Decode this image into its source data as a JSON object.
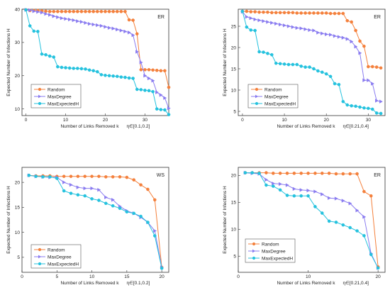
{
  "colors": {
    "random": "#F4803C",
    "maxdegree": "#8A7CF0",
    "maxexpected": "#25C2DE"
  },
  "chart_data": [
    {
      "type": "line",
      "panel_label": "ER",
      "xlabel": "Number of Links Removed k",
      "param_note": "η∈[0.1,0.2]",
      "ylabel": "Expected Number of Infections H",
      "xlim": [
        -1,
        36
      ],
      "ylim": [
        8,
        40
      ],
      "xticks": [
        0,
        10,
        20,
        30
      ],
      "yticks": [
        10,
        20,
        30,
        40
      ],
      "legend": "center-left",
      "series": [
        {
          "name": "Random",
          "color": "#F4803C",
          "marker": "circle",
          "x": [
            0,
            1,
            2,
            3,
            4,
            5,
            6,
            7,
            8,
            9,
            10,
            11,
            12,
            13,
            14,
            15,
            16,
            17,
            18,
            19,
            20,
            21,
            22,
            23,
            24,
            25,
            26,
            27,
            28,
            29,
            30,
            31,
            32,
            33,
            34,
            35,
            36
          ],
          "y": [
            39.8,
            39.6,
            39.6,
            39.6,
            39.5,
            39.4,
            39.3,
            39.3,
            39.3,
            39.3,
            39.3,
            39.3,
            39.3,
            39.3,
            39.3,
            39.3,
            39.3,
            39.3,
            39.3,
            39.3,
            39.3,
            39.3,
            39.3,
            39.3,
            39.3,
            39.3,
            36.8,
            36.7,
            32.6,
            21.8,
            21.8,
            21.8,
            21.7,
            21.6,
            21.5,
            21.5,
            16.5
          ]
        },
        {
          "name": "MaxDegree",
          "color": "#8A7CF0",
          "marker": "triangle",
          "x": [
            0,
            1,
            2,
            3,
            4,
            5,
            6,
            7,
            8,
            9,
            10,
            11,
            12,
            13,
            14,
            15,
            16,
            17,
            18,
            19,
            20,
            21,
            22,
            23,
            24,
            25,
            26,
            27,
            28,
            29,
            30,
            31,
            32,
            33,
            34,
            35,
            36
          ],
          "y": [
            39.8,
            39.7,
            39.4,
            39.2,
            39.0,
            38.6,
            38.3,
            37.9,
            37.6,
            37.3,
            37.1,
            36.9,
            36.7,
            36.4,
            36.2,
            35.9,
            35.6,
            35.4,
            35.2,
            35.0,
            34.7,
            34.4,
            34.2,
            33.9,
            33.6,
            33.3,
            33.0,
            32.2,
            27.2,
            24.0,
            20.0,
            19.2,
            18.5,
            15.0,
            14.2,
            13.3,
            10.2
          ]
        },
        {
          "name": "MaxExpectedH",
          "color": "#25C2DE",
          "marker": "circle",
          "x": [
            0,
            1,
            2,
            3,
            4,
            5,
            6,
            7,
            8,
            9,
            10,
            11,
            12,
            13,
            14,
            15,
            16,
            17,
            18,
            19,
            20,
            21,
            22,
            23,
            24,
            25,
            26,
            27,
            28,
            29,
            30,
            31,
            32,
            33,
            34,
            35,
            36
          ],
          "y": [
            39.8,
            35.0,
            33.4,
            33.3,
            26.5,
            26.3,
            25.9,
            25.6,
            22.7,
            22.5,
            22.4,
            22.3,
            22.2,
            22.2,
            22.1,
            22.0,
            21.7,
            21.5,
            21.2,
            20.3,
            20.1,
            20.0,
            19.9,
            19.8,
            19.6,
            19.5,
            19.3,
            19.2,
            15.9,
            15.8,
            15.6,
            15.5,
            15.2,
            10.0,
            9.8,
            9.7,
            8.3
          ]
        }
      ]
    },
    {
      "type": "line",
      "panel_label": "ER",
      "xlabel": "Number of Links Removed k",
      "param_note": "η∈[0.21,0.4]",
      "ylabel": "Expected Number of Infections H",
      "xlim": [
        -1,
        34
      ],
      "ylim": [
        4,
        29
      ],
      "xticks": [
        0,
        10,
        20,
        30
      ],
      "yticks": [
        5,
        10,
        15,
        20,
        25
      ],
      "legend": "center-left",
      "series": [
        {
          "name": "Random",
          "color": "#F4803C",
          "marker": "circle",
          "x": [
            0,
            1,
            2,
            3,
            4,
            5,
            6,
            7,
            8,
            9,
            10,
            11,
            12,
            13,
            14,
            15,
            16,
            17,
            18,
            19,
            20,
            21,
            22,
            23,
            24,
            25,
            26,
            27,
            28,
            29,
            30,
            31,
            32,
            33
          ],
          "y": [
            28.5,
            28.5,
            28.4,
            28.4,
            28.3,
            28.3,
            28.3,
            28.2,
            28.2,
            28.2,
            28.2,
            28.2,
            28.2,
            28.1,
            28.1,
            28.1,
            28.1,
            28.1,
            28.1,
            28.1,
            28.1,
            28.0,
            28.0,
            28.0,
            28.0,
            26.3,
            26.0,
            24.0,
            21.5,
            20.3,
            15.5,
            15.5,
            15.4,
            15.2
          ]
        },
        {
          "name": "MaxDegree",
          "color": "#8A7CF0",
          "marker": "triangle",
          "x": [
            0,
            1,
            2,
            3,
            4,
            5,
            6,
            7,
            8,
            9,
            10,
            11,
            12,
            13,
            14,
            15,
            16,
            17,
            18,
            19,
            20,
            21,
            22,
            23,
            24,
            25,
            26,
            27,
            28,
            29,
            30,
            31,
            32,
            33
          ],
          "y": [
            28.4,
            27.2,
            26.9,
            26.6,
            26.4,
            26.2,
            26.0,
            25.8,
            25.6,
            25.4,
            25.2,
            25.0,
            24.8,
            24.6,
            24.5,
            24.3,
            24.1,
            24.0,
            23.5,
            23.3,
            23.1,
            23.0,
            22.7,
            22.5,
            22.3,
            22.0,
            21.4,
            20.2,
            18.7,
            12.3,
            12.3,
            11.5,
            7.5,
            7.3
          ]
        },
        {
          "name": "MaxExpectedH",
          "color": "#25C2DE",
          "marker": "circle",
          "x": [
            0,
            1,
            2,
            3,
            4,
            5,
            6,
            7,
            8,
            9,
            10,
            11,
            12,
            13,
            14,
            15,
            16,
            17,
            18,
            19,
            20,
            21,
            22,
            23,
            24,
            25,
            26,
            27,
            28,
            29,
            30,
            31,
            32,
            33
          ],
          "y": [
            28.5,
            24.8,
            24.1,
            24.0,
            19.0,
            18.9,
            18.6,
            18.3,
            16.3,
            16.2,
            16.1,
            16.0,
            16.0,
            16.0,
            15.6,
            15.4,
            15.4,
            15.0,
            14.5,
            14.2,
            13.8,
            13.2,
            11.5,
            11.3,
            7.3,
            6.5,
            6.3,
            6.2,
            6.0,
            5.8,
            5.7,
            5.5,
            4.6,
            4.5
          ]
        }
      ]
    },
    {
      "type": "line",
      "panel_label": "WS",
      "xlabel": "Number of Links Removed k",
      "param_note": "η∈[0.1,0.2]",
      "ylabel": "Expected Number of Infections H",
      "xlim": [
        0,
        21
      ],
      "ylim": [
        2,
        23
      ],
      "xticks": [
        0,
        5,
        10,
        15,
        20
      ],
      "yticks": [
        5,
        10,
        15,
        20
      ],
      "legend": "bottom-left",
      "series": [
        {
          "name": "Random",
          "color": "#F4803C",
          "marker": "circle",
          "x": [
            1,
            2,
            3,
            4,
            5,
            6,
            7,
            8,
            9,
            10,
            11,
            12,
            13,
            14,
            15,
            16,
            17,
            18,
            19,
            20
          ],
          "y": [
            21.4,
            21.3,
            21.3,
            21.3,
            21.2,
            21.2,
            21.2,
            21.2,
            21.2,
            21.2,
            21.2,
            21.1,
            21.1,
            21.1,
            21.0,
            20.5,
            19.5,
            18.6,
            16.5,
            3.0
          ]
        },
        {
          "name": "MaxDegree",
          "color": "#8A7CF0",
          "marker": "triangle",
          "x": [
            1,
            2,
            3,
            4,
            5,
            6,
            7,
            8,
            9,
            10,
            11,
            12,
            13,
            14,
            15,
            16,
            17,
            18,
            19,
            20
          ],
          "y": [
            21.4,
            21.2,
            21.1,
            21.0,
            21.0,
            20.0,
            19.5,
            19.0,
            18.8,
            18.8,
            18.5,
            17.0,
            16.5,
            15.2,
            14.3,
            13.8,
            13.0,
            12.0,
            10.3,
            3.0
          ]
        },
        {
          "name": "MaxExpectedH",
          "color": "#25C2DE",
          "marker": "circle",
          "x": [
            1,
            2,
            3,
            4,
            5,
            6,
            7,
            8,
            9,
            10,
            11,
            12,
            13,
            14,
            15,
            16,
            17,
            18,
            19,
            20
          ],
          "y": [
            21.4,
            21.2,
            21.1,
            21.1,
            20.8,
            18.3,
            17.8,
            17.5,
            17.3,
            16.7,
            16.4,
            15.8,
            15.3,
            14.8,
            14.1,
            13.8,
            13.2,
            12.0,
            9.3,
            2.8
          ]
        }
      ]
    },
    {
      "type": "line",
      "panel_label": "ER",
      "xlabel": "Number of Links Removed k",
      "param_note": "η∈[0.21,0.4]",
      "ylabel": "Expected Number of Infections H",
      "xlim": [
        0,
        21
      ],
      "ylim": [
        2,
        21.5
      ],
      "xticks": [
        0,
        10,
        20
      ],
      "yticks": [
        5,
        10,
        15,
        20
      ],
      "legend": "bottom-left",
      "series": [
        {
          "name": "Random",
          "color": "#F4803C",
          "marker": "circle",
          "x": [
            1,
            2,
            3,
            4,
            5,
            6,
            7,
            8,
            9,
            10,
            11,
            12,
            13,
            14,
            15,
            16,
            17,
            18,
            19,
            20
          ],
          "y": [
            20.5,
            20.5,
            20.5,
            20.5,
            20.4,
            20.4,
            20.4,
            20.4,
            20.4,
            20.4,
            20.4,
            20.4,
            20.4,
            20.3,
            20.3,
            20.3,
            20.3,
            17.0,
            16.2,
            3.0
          ]
        },
        {
          "name": "MaxDegree",
          "color": "#8A7CF0",
          "marker": "triangle",
          "x": [
            1,
            2,
            3,
            4,
            5,
            6,
            7,
            8,
            9,
            10,
            11,
            12,
            13,
            14,
            15,
            16,
            17,
            18,
            19,
            20
          ],
          "y": [
            20.5,
            20.4,
            20.3,
            19.2,
            18.5,
            18.4,
            18.2,
            17.5,
            17.3,
            17.2,
            17.0,
            16.5,
            15.8,
            15.7,
            15.3,
            14.8,
            13.5,
            12.3,
            5.5,
            2.8
          ]
        },
        {
          "name": "MaxExpectedH",
          "color": "#25C2DE",
          "marker": "circle",
          "x": [
            1,
            2,
            3,
            4,
            5,
            6,
            7,
            8,
            9,
            10,
            11,
            12,
            13,
            14,
            15,
            16,
            17,
            18,
            19,
            20
          ],
          "y": [
            20.5,
            20.5,
            20.4,
            18.2,
            18.0,
            17.3,
            16.3,
            16.2,
            16.2,
            16.2,
            14.2,
            13.0,
            11.5,
            11.3,
            10.8,
            10.3,
            9.7,
            8.8,
            5.3,
            2.8
          ]
        }
      ]
    }
  ]
}
